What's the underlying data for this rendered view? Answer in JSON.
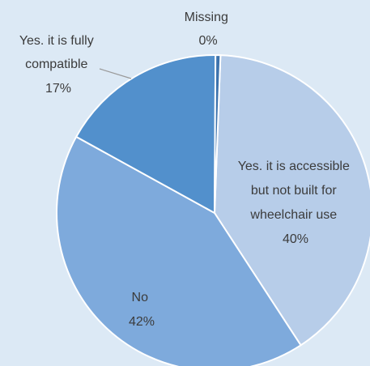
{
  "chart_data": {
    "type": "pie",
    "title": "",
    "slices": [
      {
        "label_lines": [
          "Yes. it is accessible",
          "but not built for",
          "wheelchair use"
        ],
        "value": 40,
        "value_label": "40%",
        "color": "#b7cde9"
      },
      {
        "label_lines": [
          "No"
        ],
        "value": 42,
        "value_label": "42%",
        "color": "#7eaadc"
      },
      {
        "label_lines": [
          "Yes. it is fully",
          "compatible"
        ],
        "value": 17,
        "value_label": "17%",
        "color": "#5290cc"
      },
      {
        "label_lines": [
          "Missing"
        ],
        "value": 0.5,
        "value_label": "0%",
        "color": "#3d73ad"
      }
    ],
    "legend": "none"
  }
}
